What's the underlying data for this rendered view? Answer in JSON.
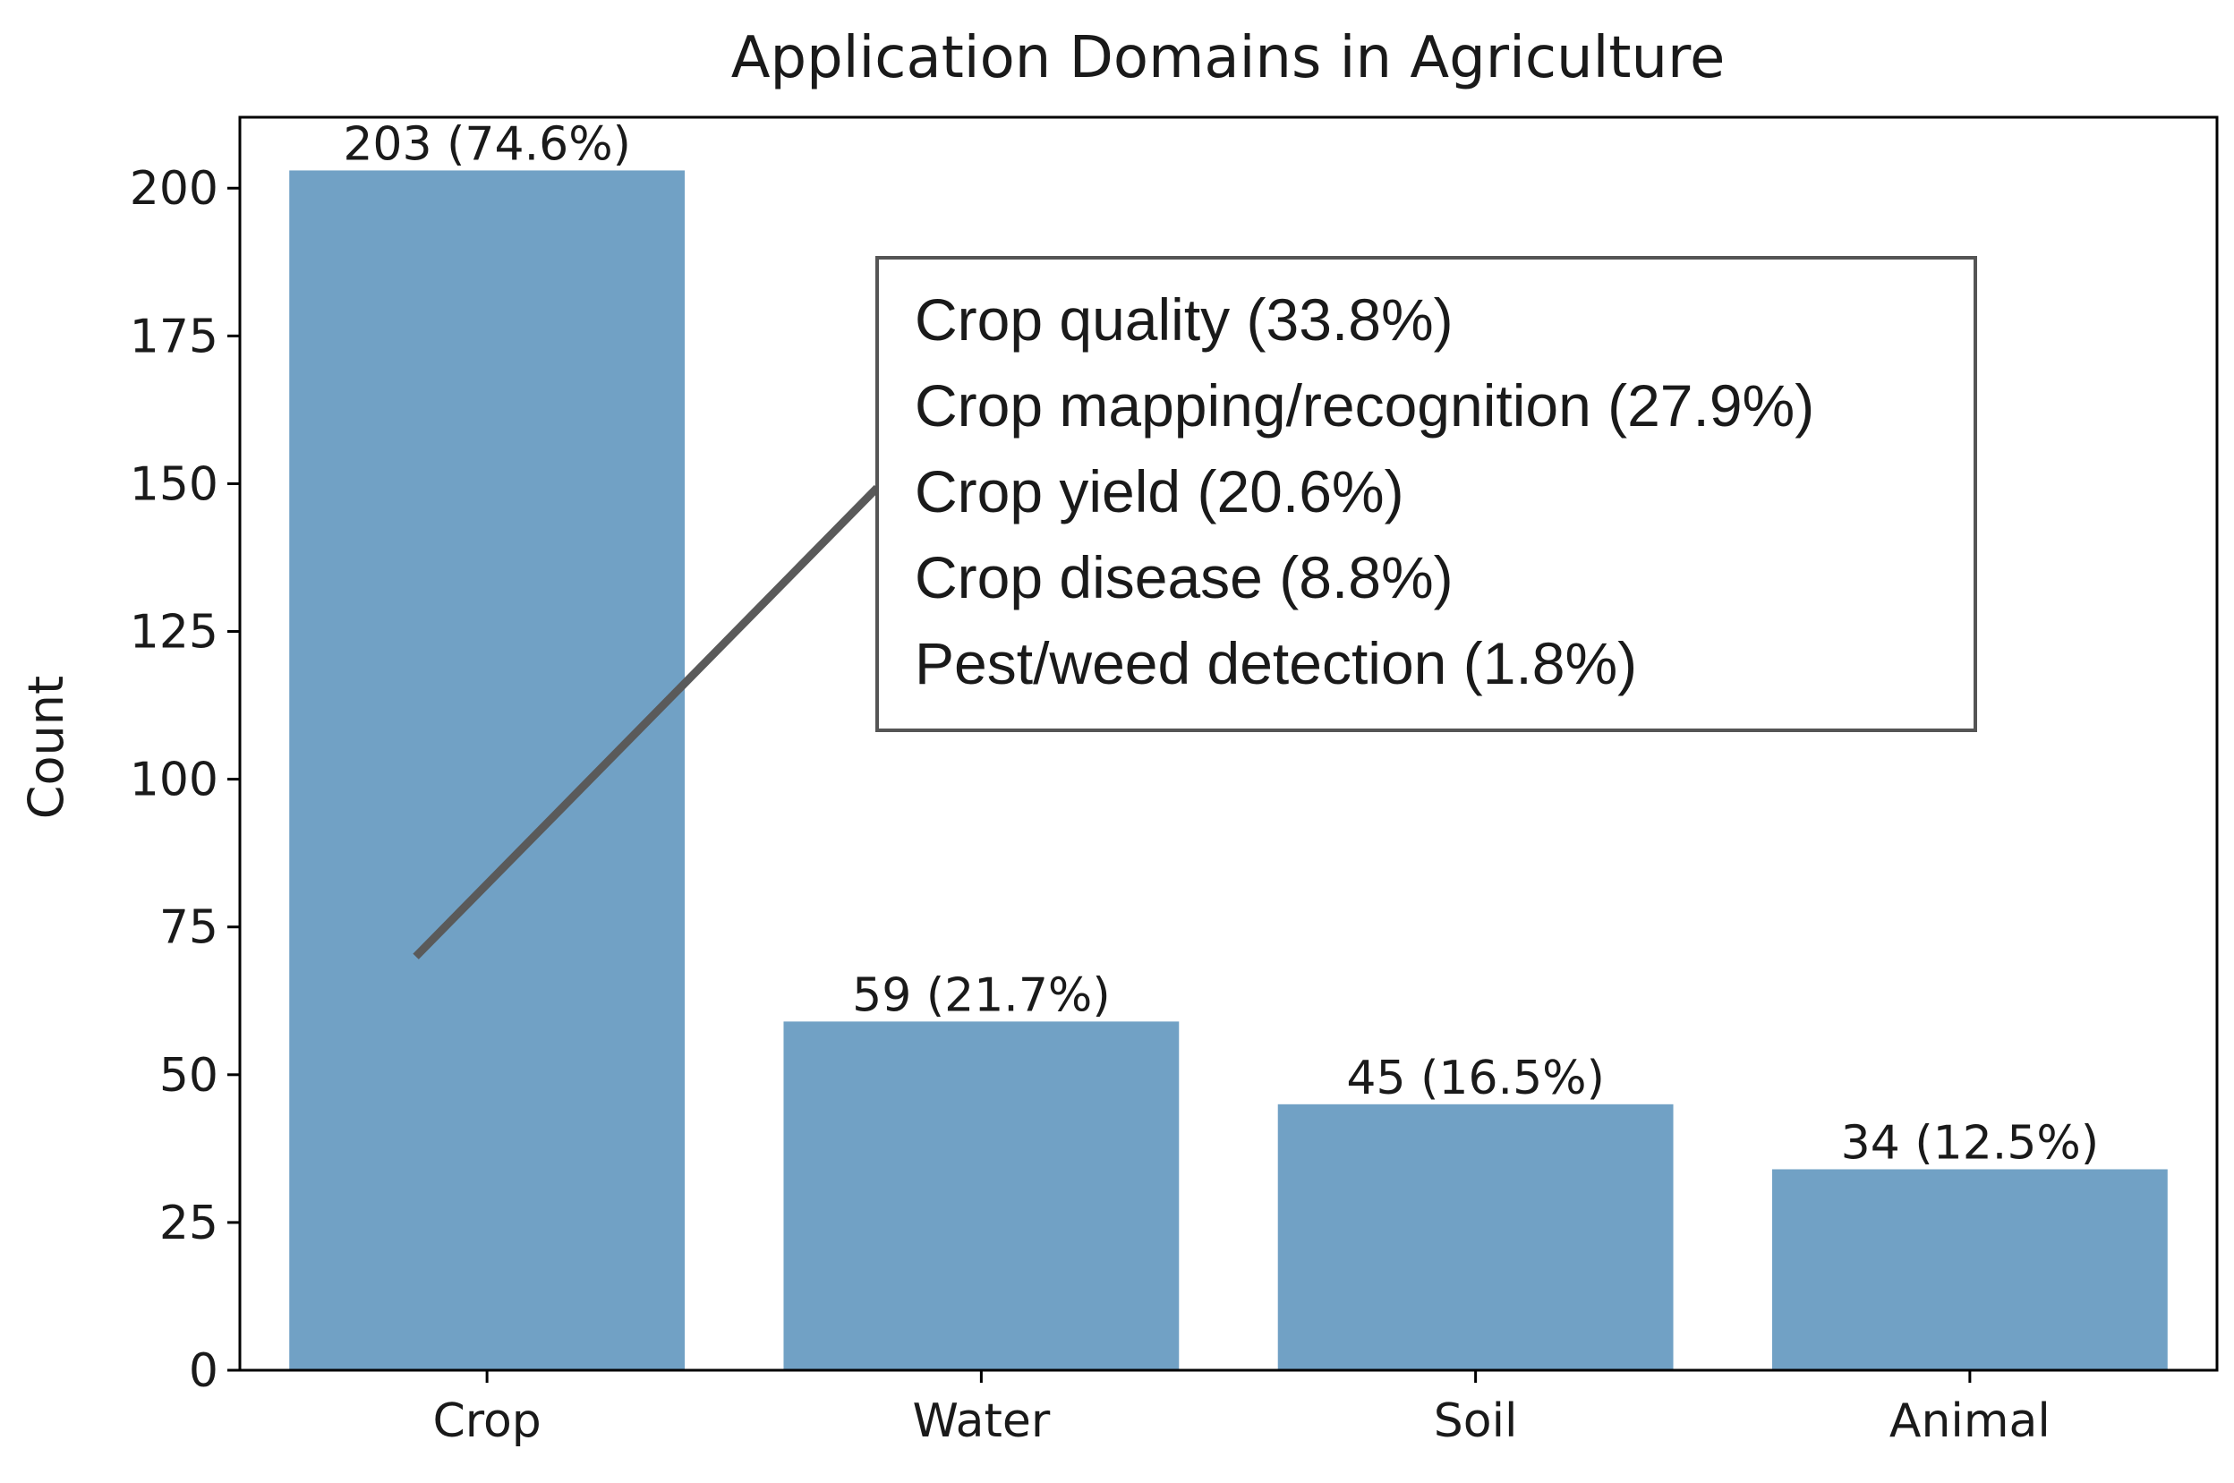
{
  "chart_data": {
    "type": "bar",
    "title": "Application Domains in Agriculture",
    "xlabel": "",
    "ylabel": "Count",
    "categories": [
      "Crop",
      "Water",
      "Soil",
      "Animal"
    ],
    "values": [
      203,
      59,
      45,
      34
    ],
    "bar_labels": [
      "203 (74.6%)",
      "59 (21.7%)",
      "45 (16.5%)",
      "34 (12.5%)"
    ],
    "ylim": [
      0,
      212
    ],
    "yticks": [
      0,
      25,
      50,
      75,
      100,
      125,
      150,
      175,
      200
    ],
    "grid": false,
    "bar_color": "#71a1c5",
    "annotation": {
      "target_category": "Crop",
      "target_value": 70,
      "lines": [
        "Crop quality (33.8%)",
        "Crop mapping/recognition (27.9%)",
        "Crop yield (20.6%)",
        "Crop disease (8.8%)",
        "Pest/weed detection (1.8%)"
      ]
    }
  }
}
